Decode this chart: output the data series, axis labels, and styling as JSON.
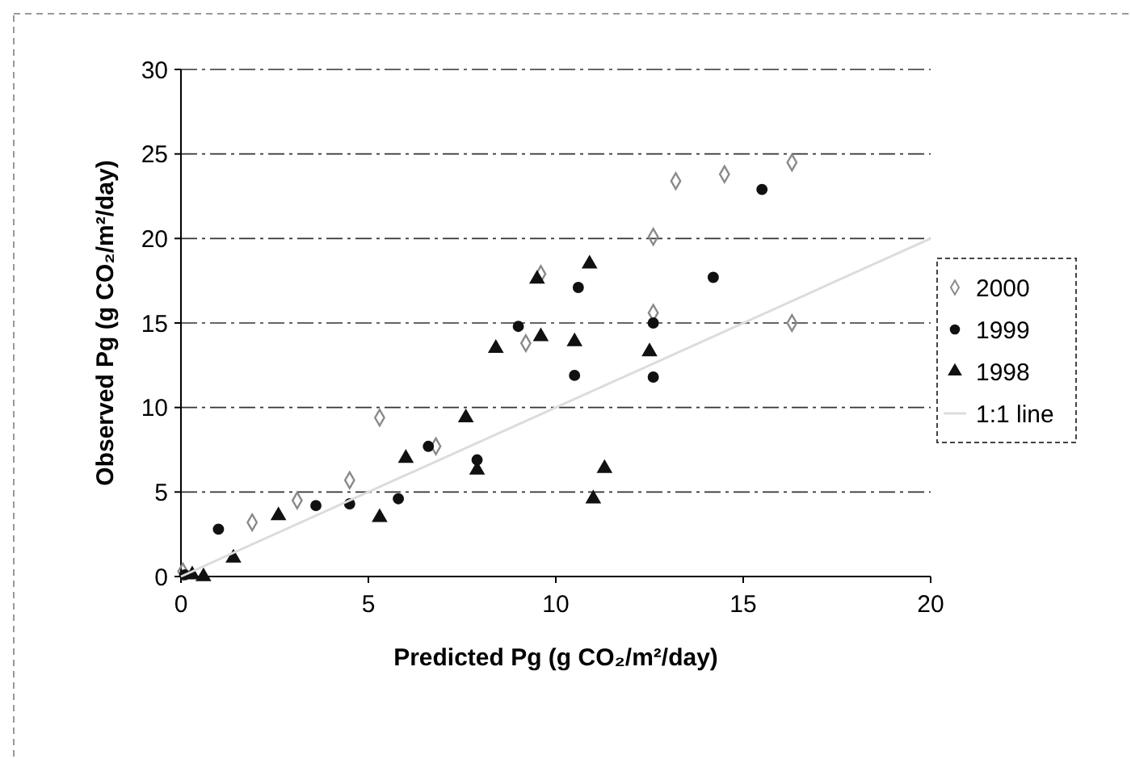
{
  "chart_data": {
    "type": "scatter",
    "xlabel": "Predicted Pg (g CO₂/m²/day)",
    "ylabel": "Observed Pg (g CO₂/m²/day)",
    "xlim": [
      0,
      20
    ],
    "ylim": [
      0,
      30
    ],
    "xticks": [
      0,
      5,
      10,
      15,
      20
    ],
    "yticks": [
      0,
      5,
      10,
      15,
      20,
      25,
      30
    ],
    "grid": "y",
    "legend": "right",
    "series": [
      {
        "name": "2000",
        "color": "#8a8a8a",
        "marker": "diamond",
        "x": [
          0.05,
          1.9,
          3.1,
          4.5,
          5.3,
          6.8,
          9.2,
          9.6,
          12.6,
          12.6,
          13.2,
          14.5,
          16.3,
          16.3
        ],
        "values": [
          0.3,
          3.2,
          4.5,
          5.7,
          9.4,
          7.7,
          13.8,
          17.9,
          15.6,
          20.1,
          23.4,
          23.8,
          24.5,
          15.0
        ]
      },
      {
        "name": "1999",
        "color": "#111111",
        "marker": "circle",
        "x": [
          0.1,
          1.0,
          3.6,
          4.5,
          5.8,
          6.6,
          7.9,
          9.0,
          10.5,
          10.6,
          12.6,
          12.6,
          14.2,
          15.5
        ],
        "values": [
          0.1,
          2.8,
          4.2,
          4.3,
          4.6,
          7.7,
          6.9,
          14.8,
          11.9,
          17.1,
          11.8,
          15.0,
          17.7,
          22.9
        ]
      },
      {
        "name": "1998",
        "color": "#111111",
        "marker": "triangle",
        "x": [
          0.3,
          0.6,
          1.4,
          2.6,
          5.3,
          6.0,
          7.6,
          7.9,
          8.4,
          9.5,
          9.6,
          10.5,
          10.9,
          11.0,
          11.3,
          12.5
        ],
        "values": [
          0.1,
          0.0,
          1.1,
          3.6,
          3.5,
          7.0,
          9.4,
          6.3,
          13.5,
          17.6,
          14.2,
          13.9,
          18.5,
          4.6,
          6.4,
          13.3
        ]
      },
      {
        "name": "1:1 line",
        "type": "line",
        "color": "#dcdcdc",
        "marker": "none",
        "x": [
          0,
          20
        ],
        "values": [
          0,
          20
        ]
      }
    ]
  }
}
